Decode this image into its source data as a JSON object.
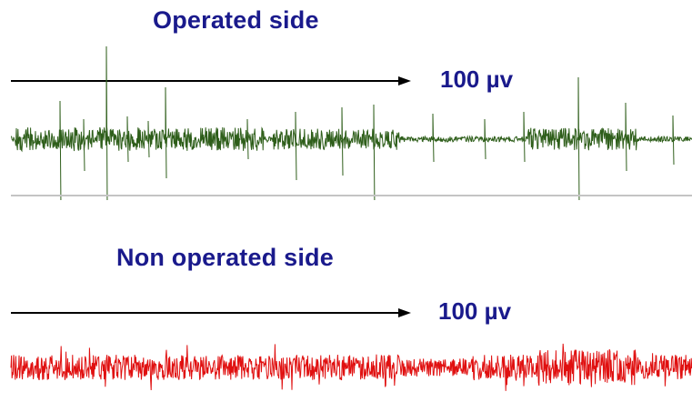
{
  "panels": {
    "operated": {
      "title": "Operated side",
      "scale_label": "100 µv",
      "trace_color": "#2e5e1a",
      "title_color": "#1a1a8c"
    },
    "non_operated": {
      "title": "Non operated side",
      "scale_label": "100 µv",
      "trace_color": "#e01010",
      "title_color": "#1a1a8c"
    }
  }
}
